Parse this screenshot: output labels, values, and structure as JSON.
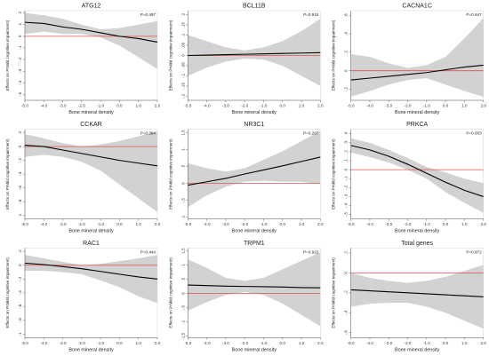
{
  "chart_data": [
    {
      "type": "line",
      "title": "ATG12",
      "pvalue": "P=0.497",
      "xlabel": "Bone mineral density",
      "ylabel": "Effects on PrMild cognitive impairment)",
      "xticks": [
        "-5.0",
        "-4.0",
        "-3.0",
        "-2.0",
        "-1.0",
        "0.0",
        "1.0",
        "2.0"
      ],
      "yticks": [
        "-.5",
        "-.4",
        "-.3",
        "-.2",
        "-.1",
        "0",
        ".1",
        ".2"
      ],
      "xlim": [
        -5,
        2
      ],
      "ylim": [
        -0.55,
        0.22
      ],
      "x": [
        -5,
        -4,
        -3,
        -2,
        -1,
        0,
        1,
        2
      ],
      "fit": [
        0.12,
        0.11,
        0.08,
        0.06,
        0.03,
        0.0,
        -0.02,
        -0.05
      ],
      "ci_upper": [
        0.2,
        0.18,
        0.15,
        0.1,
        0.06,
        0.07,
        0.1,
        0.13
      ],
      "ci_lower": [
        0.02,
        0.04,
        0.02,
        0.02,
        -0.01,
        -0.08,
        -0.18,
        -0.28
      ],
      "reference_line": 0
    },
    {
      "type": "line",
      "title": "BCL11B",
      "pvalue": "P=0.915",
      "xlabel": "Bone mineral density",
      "ylabel": "Effects on PrMild cognitive impairment)",
      "xticks": [
        "-5.0",
        "-4.0",
        "-3.0",
        "-2.0",
        "-1.0",
        "0.0",
        "1.0",
        "2.0"
      ],
      "yticks": [
        ".2",
        ".15",
        ".1",
        ".05",
        "0",
        "-.05",
        "-.1",
        "-.15",
        "-.2"
      ],
      "xlim": [
        -5,
        2
      ],
      "ylim": [
        -0.22,
        0.22
      ],
      "x": [
        -5,
        -4,
        -3,
        -2,
        -1,
        0,
        1,
        2
      ],
      "fit": [
        0.0,
        0.002,
        0.004,
        0.006,
        0.008,
        0.01,
        0.012,
        0.014
      ],
      "ci_upper": [
        0.1,
        0.07,
        0.04,
        0.025,
        0.04,
        0.07,
        0.12,
        0.18
      ],
      "ci_lower": [
        -0.1,
        -0.06,
        -0.03,
        -0.015,
        -0.02,
        -0.05,
        -0.1,
        -0.15
      ],
      "reference_line": 0
    },
    {
      "type": "line",
      "title": "CACNA1C",
      "pvalue": "P=0.647",
      "xlabel": "Bone mineral density",
      "ylabel": "Effects on PrMild cognitive impairment)",
      "xticks": [
        "-5.0",
        "-4.0",
        "-3.0",
        "-2.0",
        "-1.0",
        "0.0",
        "1.0",
        "2.0"
      ],
      "yticks": [
        ".6",
        ".4",
        ".2",
        "0",
        "-.2"
      ],
      "xlim": [
        -5,
        2
      ],
      "ylim": [
        -0.32,
        0.65
      ],
      "x": [
        -5,
        -4,
        -3,
        -2,
        -1,
        0,
        1,
        2
      ],
      "fit": [
        -0.1,
        -0.08,
        -0.06,
        -0.04,
        -0.02,
        0.01,
        0.04,
        0.06
      ],
      "ci_upper": [
        0.18,
        0.15,
        0.08,
        0.03,
        0.06,
        0.15,
        0.35,
        0.57
      ],
      "ci_lower": [
        -0.28,
        -0.22,
        -0.15,
        -0.1,
        -0.08,
        -0.15,
        -0.22,
        -0.28
      ],
      "reference_line": 0
    },
    {
      "type": "line",
      "title": "CCKAR",
      "pvalue": "P=0.384",
      "xlabel": "Bone mineral density",
      "ylabel": "Effects on PrMild cognitive impairment)",
      "xticks": [
        "-5.0",
        "-4.0",
        "-3.0",
        "-2.0",
        "-1.0",
        "0.0",
        "1.0",
        "2.0"
      ],
      "yticks": [
        ".2",
        "0",
        "-.2",
        "-.4",
        "-.6",
        "-.8",
        "-1"
      ],
      "xlim": [
        -5,
        2
      ],
      "ylim": [
        -1.05,
        0.25
      ],
      "x": [
        -5,
        -4,
        -3,
        -2,
        -1,
        0,
        1,
        2
      ],
      "fit": [
        0.02,
        0.0,
        -0.05,
        -0.1,
        -0.15,
        -0.2,
        -0.24,
        -0.28
      ],
      "ci_upper": [
        0.18,
        0.12,
        0.05,
        0.0,
        0.03,
        0.08,
        0.15,
        0.22
      ],
      "ci_lower": [
        -0.15,
        -0.12,
        -0.15,
        -0.22,
        -0.35,
        -0.55,
        -0.75,
        -0.95
      ],
      "reference_line": 0
    },
    {
      "type": "line",
      "title": "NR3C1",
      "pvalue": "P=0.267",
      "xlabel": "Bone mineral density",
      "ylabel": "Effects on PrMild cognitive impairment)",
      "xticks": [
        "-5.0",
        "-4.0",
        "-3.0",
        "-2.0",
        "-1.0",
        "0.0",
        "1.0",
        "2.0"
      ],
      "yticks": [
        "1.5",
        "1",
        ".5",
        "0",
        "-.5",
        "-1"
      ],
      "xlim": [
        -5,
        2
      ],
      "ylim": [
        -1.05,
        1.6
      ],
      "x": [
        -5,
        -4,
        -3,
        -2,
        -1,
        0,
        1,
        2
      ],
      "fit": [
        -0.05,
        0.05,
        0.15,
        0.28,
        0.4,
        0.52,
        0.65,
        0.78
      ],
      "ci_upper": [
        0.6,
        0.45,
        0.35,
        0.45,
        0.7,
        0.95,
        1.25,
        1.55
      ],
      "ci_lower": [
        -0.7,
        -0.35,
        -0.1,
        0.05,
        0.08,
        0.05,
        0.05,
        -0.02
      ],
      "reference_line": 0
    },
    {
      "type": "line",
      "title": "PRKCA",
      "pvalue": "P=0.003",
      "xlabel": "Bone mineral density",
      "ylabel": "Effects on PrMild cognitive impairment)",
      "xticks": [
        "-5.0",
        "-4.0",
        "-3.0",
        "-2.0",
        "-1.0",
        "0.0",
        "1.0",
        "2.0"
      ],
      "yticks": [
        ".4",
        ".3",
        ".2",
        ".1",
        "0",
        "-.1",
        "-.2",
        "-.3",
        "-.4",
        "-.5"
      ],
      "xlim": [
        -5,
        2
      ],
      "ylim": [
        -0.55,
        0.45
      ],
      "x": [
        -5,
        -4,
        -3,
        -2,
        -1,
        0,
        1,
        2
      ],
      "fit": [
        0.27,
        0.22,
        0.15,
        0.06,
        -0.04,
        -0.14,
        -0.23,
        -0.3
      ],
      "ci_upper": [
        0.35,
        0.3,
        0.22,
        0.13,
        0.03,
        -0.03,
        -0.1,
        -0.15
      ],
      "ci_lower": [
        0.19,
        0.14,
        0.08,
        0.0,
        -0.1,
        -0.25,
        -0.37,
        -0.48
      ],
      "reference_line": 0
    },
    {
      "type": "line",
      "title": "RAC1",
      "pvalue": "P=0.444",
      "xlabel": "Bone mineral density",
      "ylabel": "Effects on PrMild cognitive impairment)",
      "xticks": [
        "-5.0",
        "-4.0",
        "-3.0",
        "-2.0",
        "-1.0",
        "0.0",
        "1.0",
        "2.0"
      ],
      "yticks": [
        ".2",
        "0",
        "-.2",
        "-.4",
        "-.6",
        "-.8",
        "-1"
      ],
      "xlim": [
        -5,
        2
      ],
      "ylim": [
        -1.05,
        0.25
      ],
      "x": [
        -5,
        -4,
        -3,
        -2,
        -1,
        0,
        1,
        2
      ],
      "fit": [
        0.03,
        0.01,
        -0.02,
        -0.05,
        -0.09,
        -0.13,
        -0.17,
        -0.2
      ],
      "ci_upper": [
        0.15,
        0.1,
        0.05,
        0.0,
        0.02,
        0.06,
        0.1,
        0.15
      ],
      "ci_lower": [
        -0.08,
        -0.08,
        -0.1,
        -0.13,
        -0.22,
        -0.32,
        -0.45,
        -0.55
      ],
      "reference_line": 0
    },
    {
      "type": "line",
      "title": "TRPM1",
      "pvalue": "P=0.922",
      "xlabel": "Bone mineral density",
      "ylabel": "Effects on PrMild cognitive impairment)",
      "xticks": [
        "-5.0",
        "-4.0",
        "-3.0",
        "-2.0",
        "-1.0",
        "0.0",
        "1.0",
        "2.0"
      ],
      "yticks": [
        "1.5",
        "1",
        ".5",
        "0",
        "-.5",
        "-1",
        "-1.5"
      ],
      "xlim": [
        -5,
        2
      ],
      "ylim": [
        -1.55,
        1.6
      ],
      "x": [
        -5,
        -4,
        -3,
        -2,
        -1,
        0,
        1,
        2
      ],
      "fit": [
        0.3,
        0.28,
        0.26,
        0.25,
        0.24,
        0.23,
        0.21,
        0.2
      ],
      "ci_upper": [
        1.2,
        0.9,
        0.55,
        0.45,
        0.55,
        0.85,
        1.15,
        1.45
      ],
      "ci_lower": [
        -0.6,
        -0.3,
        -0.05,
        0.05,
        -0.05,
        -0.35,
        -0.75,
        -1.15
      ],
      "reference_line": 0
    },
    {
      "type": "line",
      "title": "Total genes",
      "pvalue": "P=0.872",
      "xlabel": "Bone mineral density",
      "ylabel": "Effects on PrMild cognitive impairment)",
      "xticks": [
        "-5.0",
        "-4.0",
        "-3.0",
        "-2.0",
        "-1.0",
        "0.0",
        "1.0",
        "2.0"
      ],
      "yticks": [
        ".2",
        "0",
        "-.2",
        "-.4",
        "-.6"
      ],
      "xlim": [
        -5,
        2
      ],
      "ylim": [
        -0.65,
        0.25
      ],
      "x": [
        -5,
        -4,
        -3,
        -2,
        -1,
        0,
        1,
        2
      ],
      "fit": [
        -0.17,
        -0.18,
        -0.19,
        -0.2,
        -0.21,
        -0.22,
        -0.23,
        -0.24
      ],
      "ci_upper": [
        0.0,
        -0.05,
        -0.08,
        -0.1,
        -0.08,
        -0.04,
        0.02,
        0.08
      ],
      "ci_lower": [
        -0.34,
        -0.31,
        -0.3,
        -0.3,
        -0.34,
        -0.4,
        -0.48,
        -0.56
      ],
      "reference_line": 0
    }
  ],
  "colors": {
    "fit_line": "#000000",
    "ci_band": "#d2d2d2",
    "reference_line": "#e0524a",
    "axis": "#555555",
    "frame": "#cccccc"
  }
}
